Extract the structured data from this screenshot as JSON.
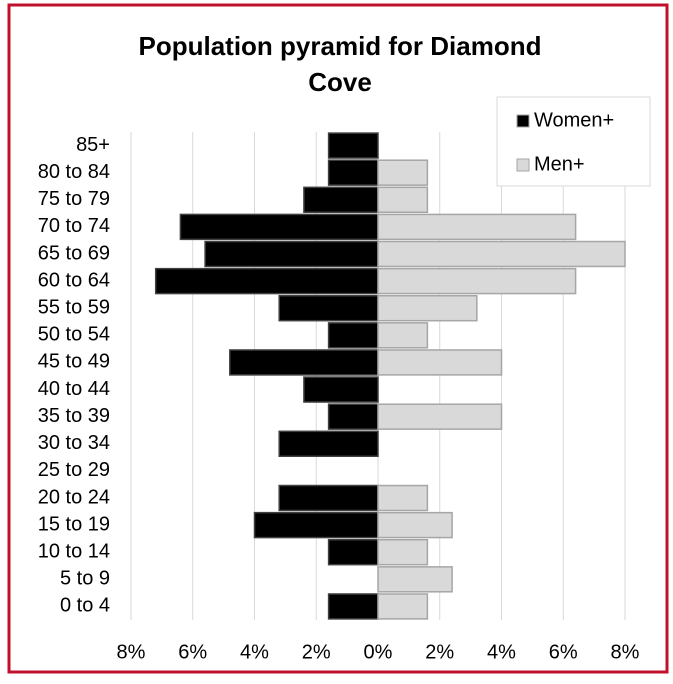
{
  "chart_data": {
    "type": "pyramid",
    "title": "Population pyramid for Diamond Cove",
    "categories": [
      "85+",
      "80 to 84",
      "75 to 79",
      "70 to 74",
      "65 to 69",
      "60 to 64",
      "55 to 59",
      "50 to 54",
      "45 to 49",
      "40 to 44",
      "35 to 39",
      "30 to 34",
      "25 to 29",
      "20 to 24",
      "15 to 19",
      "10 to 14",
      "5 to 9",
      "0 to 4"
    ],
    "series": [
      {
        "name": "Women+",
        "color": "#000000",
        "values": [
          -1.6,
          -1.6,
          -2.4,
          -6.4,
          -5.6,
          -7.2,
          -3.2,
          -1.6,
          -4.8,
          -2.4,
          -1.6,
          -3.2,
          0,
          -3.2,
          -4.0,
          -1.6,
          0,
          -1.6
        ]
      },
      {
        "name": "Men+",
        "color": "#d9d9d9",
        "values": [
          0,
          1.6,
          1.6,
          6.4,
          8.0,
          6.4,
          3.2,
          1.6,
          4.0,
          0,
          4.0,
          0,
          0,
          1.6,
          2.4,
          1.6,
          2.4,
          1.6
        ]
      }
    ],
    "xlim": [
      -8,
      8
    ],
    "xticks": [
      {
        "value": -8,
        "label": "8%"
      },
      {
        "value": -6,
        "label": "6%"
      },
      {
        "value": -4,
        "label": "4%"
      },
      {
        "value": -2,
        "label": "2%"
      },
      {
        "value": 0,
        "label": "0%"
      },
      {
        "value": 2,
        "label": "2%"
      },
      {
        "value": 4,
        "label": "4%"
      },
      {
        "value": 6,
        "label": "6%"
      },
      {
        "value": 8,
        "label": "8%"
      }
    ],
    "grid": true,
    "legend": "top-right"
  }
}
